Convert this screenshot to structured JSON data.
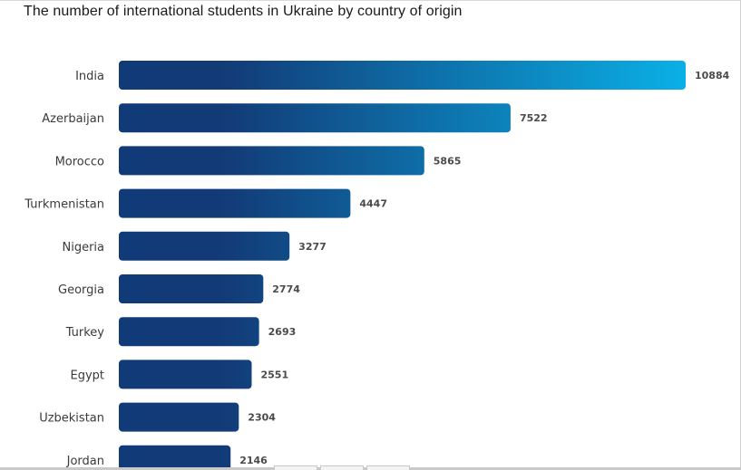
{
  "page": {
    "title": "The number of international students in Ukraine by country of origin"
  },
  "colors": {
    "bar_dark": "#113a78",
    "bar_light": "#0ab0e6"
  },
  "chart_data": {
    "type": "bar",
    "orientation": "horizontal",
    "title": "The number of international students in Ukraine by country of origin",
    "categories": [
      "India",
      "Azerbaijan",
      "Morocco",
      "Turkmenistan",
      "Nigeria",
      "Georgia",
      "Turkey",
      "Egypt",
      "Uzbekistan",
      "Jordan"
    ],
    "values": [
      10884,
      7522,
      5865,
      4447,
      3277,
      2774,
      2693,
      2551,
      2304,
      2146
    ],
    "xlabel": "",
    "ylabel": "",
    "grid": false,
    "legend": "none"
  }
}
